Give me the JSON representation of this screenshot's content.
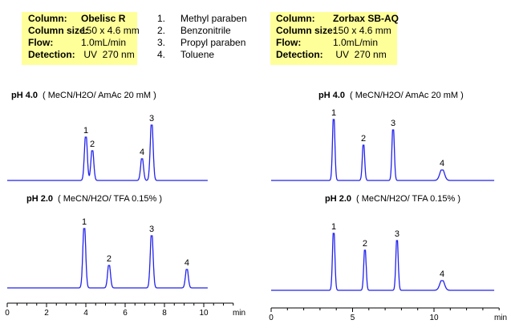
{
  "left_conditions": {
    "bg_color": "#ffff99",
    "rows": [
      {
        "label": "Column:",
        "value": "Obelisc R"
      },
      {
        "label": "Column size:",
        "value": "150 x 4.6 mm"
      },
      {
        "label": "Flow:",
        "value": "1.0mL/min"
      },
      {
        "label": "Detection:",
        "value": " UV  270 nm"
      }
    ]
  },
  "compounds": [
    {
      "num": "1.",
      "name": "Methyl paraben"
    },
    {
      "num": "2.",
      "name": "Benzonitrile"
    },
    {
      "num": "3.",
      "name": "Propyl paraben"
    },
    {
      "num": "4.",
      "name": "Toluene"
    }
  ],
  "right_conditions": {
    "bg_color": "#ffff99",
    "rows": [
      {
        "label": "Column:",
        "value": "Zorbax SB-AQ"
      },
      {
        "label": "Column size:",
        "value": "150 x 4.6 mm"
      },
      {
        "label": "Flow:",
        "value": "1.0mL/min"
      },
      {
        "label": "Detection:",
        "value": " UV  270 nm"
      }
    ]
  },
  "trace_color": "#2222ee",
  "chart_data": [
    {
      "type": "line",
      "column": "Obelisc R",
      "title_bold": "pH 4.0",
      "title": "( MeCN/H2O/ AmAc 20 mM )",
      "xlabel": "min",
      "xlim": [
        0,
        11.5
      ],
      "xticks": [
        "0",
        "2",
        "4",
        "6",
        "8",
        "10"
      ],
      "peaks": [
        {
          "label": "1",
          "rt_min": 4.0,
          "relative_height": 54
        },
        {
          "label": "2",
          "rt_min": 4.33,
          "relative_height": 37
        },
        {
          "label": "4",
          "rt_min": 6.86,
          "relative_height": 27
        },
        {
          "label": "3",
          "rt_min": 7.35,
          "relative_height": 69
        }
      ]
    },
    {
      "type": "line",
      "column": "Obelisc R",
      "title_bold": "pH 2.0",
      "title": "( MeCN/H2O/ TFA 0.15% )",
      "xlabel": "min",
      "xlim": [
        0,
        11.5
      ],
      "xticks": [
        "0",
        "2",
        "4",
        "6",
        "8",
        "10"
      ],
      "peaks": [
        {
          "label": "1",
          "rt_min": 3.92,
          "relative_height": 74
        },
        {
          "label": "2",
          "rt_min": 5.18,
          "relative_height": 28
        },
        {
          "label": "3",
          "rt_min": 7.35,
          "relative_height": 65
        },
        {
          "label": "4",
          "rt_min": 9.14,
          "relative_height": 23
        }
      ]
    },
    {
      "type": "line",
      "column": "Zorbax SB-AQ",
      "title_bold": "pH 4.0",
      "title": "( MeCN/H2O/ AmAc 20 mM )",
      "xlabel": "min",
      "xlim": [
        0,
        14
      ],
      "xticks": [
        "0",
        "5",
        "10"
      ],
      "peaks": [
        {
          "label": "1",
          "rt_min": 3.84,
          "relative_height": 76
        },
        {
          "label": "2",
          "rt_min": 5.67,
          "relative_height": 44
        },
        {
          "label": "3",
          "rt_min": 7.49,
          "relative_height": 63
        },
        {
          "label": "4",
          "rt_min": 10.5,
          "relative_height": 13
        }
      ]
    },
    {
      "type": "line",
      "column": "Zorbax SB-AQ",
      "title_bold": "pH 2.0",
      "title": "( MeCN/H2O/ TFA 0.15% )",
      "xlabel": "min",
      "xlim": [
        0,
        14
      ],
      "xticks": [
        "0",
        "5",
        "10"
      ],
      "peaks": [
        {
          "label": "1",
          "rt_min": 3.84,
          "relative_height": 71
        },
        {
          "label": "2",
          "rt_min": 5.76,
          "relative_height": 50
        },
        {
          "label": "3",
          "rt_min": 7.73,
          "relative_height": 62
        },
        {
          "label": "4",
          "rt_min": 10.5,
          "relative_height": 12
        }
      ]
    }
  ]
}
